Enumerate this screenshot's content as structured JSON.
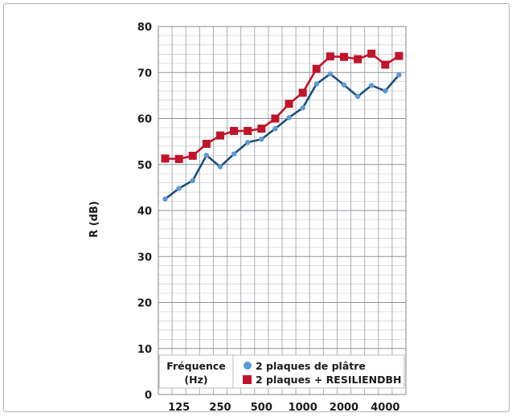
{
  "chart_data": {
    "type": "line",
    "ylabel": "R (dB)",
    "ylim": [
      0,
      80
    ],
    "y_ticks": [
      "0",
      "10",
      "20",
      "30",
      "40",
      "50",
      "60",
      "70",
      "80"
    ],
    "x_ticks": [
      "125",
      "250",
      "500",
      "1000",
      "2000",
      "4000"
    ],
    "x": [
      "100",
      "125",
      "160",
      "200",
      "250",
      "315",
      "400",
      "500",
      "630",
      "800",
      "1000",
      "1250",
      "1600",
      "2000",
      "2500",
      "3150",
      "4000",
      "5000"
    ],
    "x_scale": "log (third-octave bands)",
    "grid": true,
    "legend": {
      "title_line1": "Fréquence",
      "title_line2": "(Hz)",
      "placement": "bottom-left"
    },
    "series": [
      {
        "name": "2 plaques de plâtre",
        "color": "#1f4e79",
        "marker_color": "#5b9bd5",
        "marker": "circle",
        "values": [
          42.5,
          44.8,
          46.5,
          52.0,
          49.5,
          52.3,
          54.8,
          55.5,
          57.8,
          60.2,
          62.3,
          67.5,
          69.7,
          67.3,
          64.8,
          67.2,
          66.0,
          69.5
        ]
      },
      {
        "name": "2 plaques + RESILIENDBH",
        "color": "#c0142c",
        "marker_color": "#c0142c",
        "marker": "square",
        "values": [
          51.3,
          51.2,
          51.9,
          54.5,
          56.3,
          57.3,
          57.3,
          57.8,
          60.0,
          63.2,
          65.6,
          70.8,
          73.5,
          73.4,
          72.9,
          74.1,
          71.7,
          73.6
        ]
      }
    ]
  }
}
